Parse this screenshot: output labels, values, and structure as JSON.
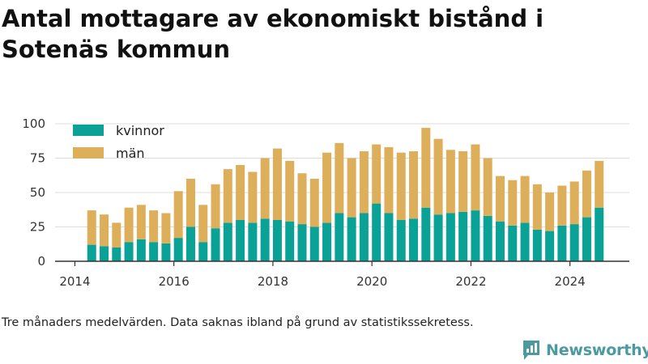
{
  "header": {
    "title": "Antal mottagare av ekonomiskt bistånd i Sotenäs kommun"
  },
  "footer": {
    "note": "Tre månaders medelvärden. Data saknas ibland på grund av statistikssekretess.",
    "brand": "Newsworthy"
  },
  "colors": {
    "kvinnor": "#0aa296",
    "man": "#ddaf5b",
    "grid": "#dddddd",
    "axis": "#333333",
    "brand": "#4a9aa0"
  },
  "icons": {
    "brand_logo": "newsworthy-chart-icon"
  },
  "chart_data": {
    "type": "bar",
    "stacked": true,
    "title": "Antal mottagare av ekonomiskt bistånd i Sotenäs kommun",
    "xlim": [
      2013.6,
      2025.2
    ],
    "ylim": [
      0,
      100
    ],
    "x_ticks": [
      2014,
      2016,
      2018,
      2020,
      2022,
      2024
    ],
    "y_ticks": [
      0,
      25,
      50,
      75,
      100
    ],
    "grid": true,
    "legend_position": "top-left",
    "x": [
      2014.34,
      2014.59,
      2014.84,
      2015.09,
      2015.34,
      2015.59,
      2015.84,
      2016.09,
      2016.34,
      2016.59,
      2016.84,
      2017.09,
      2017.34,
      2017.59,
      2017.84,
      2018.09,
      2018.34,
      2018.59,
      2018.84,
      2019.09,
      2019.34,
      2019.59,
      2019.84,
      2020.09,
      2020.34,
      2020.59,
      2020.84,
      2021.09,
      2021.34,
      2021.59,
      2021.84,
      2022.09,
      2022.34,
      2022.59,
      2022.84,
      2023.09,
      2023.34,
      2023.59,
      2023.84,
      2024.09,
      2024.34,
      2024.59
    ],
    "series": [
      {
        "name": "kvinnor",
        "values": [
          12,
          11,
          10,
          14,
          16,
          14,
          13,
          17,
          25,
          14,
          24,
          28,
          30,
          28,
          31,
          30,
          29,
          27,
          25,
          28,
          35,
          32,
          35,
          42,
          35,
          30,
          31,
          39,
          34,
          35,
          36,
          37,
          33,
          29,
          26,
          28,
          23,
          22,
          26,
          27,
          32,
          39
        ]
      },
      {
        "name": "män",
        "values": [
          25,
          23,
          18,
          25,
          25,
          23,
          22,
          34,
          35,
          27,
          32,
          39,
          40,
          37,
          44,
          52,
          44,
          37,
          35,
          51,
          51,
          43,
          45,
          43,
          48,
          49,
          49,
          58,
          55,
          46,
          44,
          48,
          42,
          33,
          33,
          34,
          33,
          28,
          29,
          31,
          34,
          34
        ]
      }
    ]
  }
}
